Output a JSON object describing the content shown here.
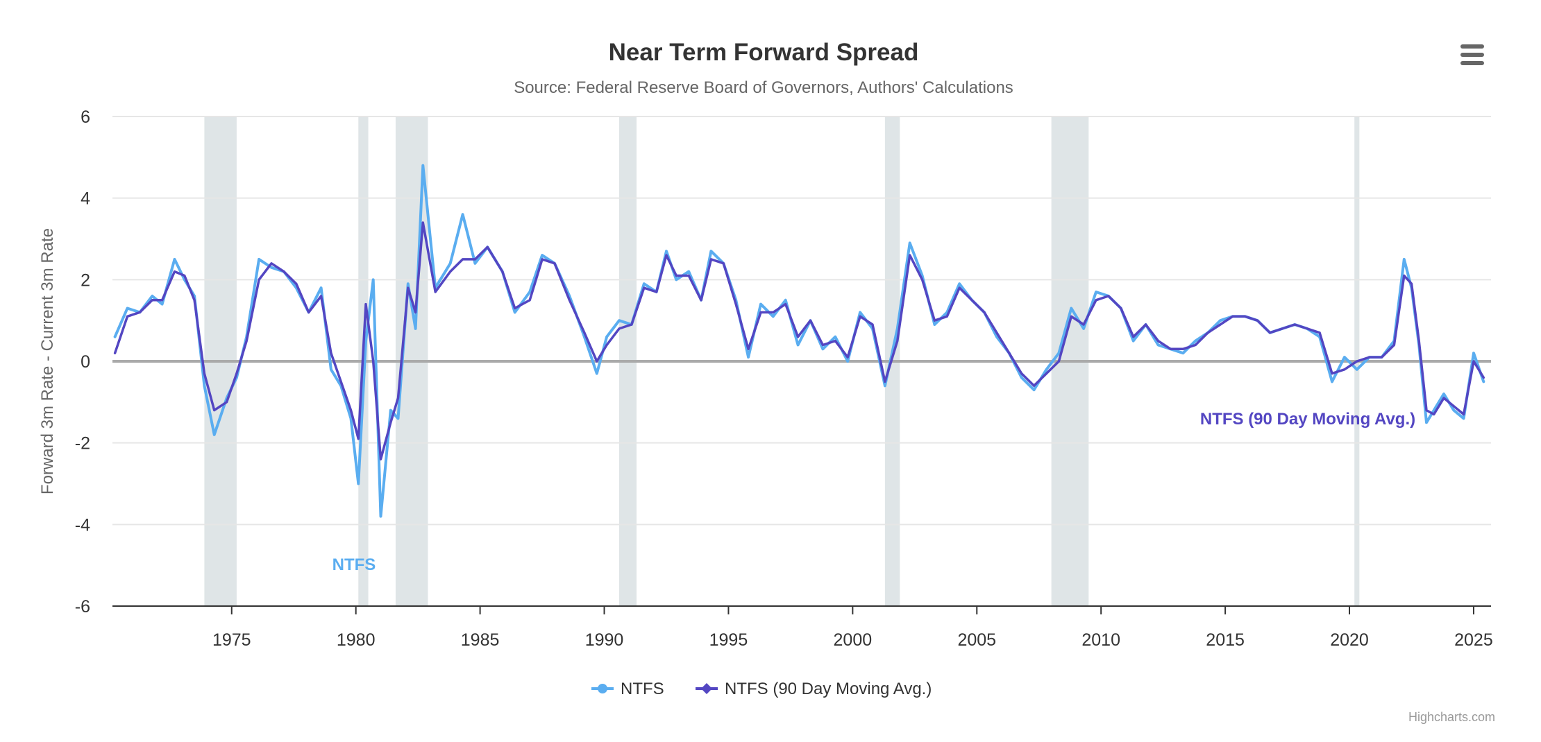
{
  "chart_data": {
    "type": "line",
    "title": "Near Term Forward Spread",
    "subtitle": "Source: Federal Reserve Board of Governors, Authors' Calculations",
    "xlabel": "",
    "ylabel": "Forward 3m Rate - Current 3m Rate",
    "xlim": [
      1970.2,
      2025.7
    ],
    "ylim": [
      -6,
      6
    ],
    "x_ticks": [
      1975,
      1980,
      1985,
      1990,
      1995,
      2000,
      2005,
      2010,
      2015,
      2020,
      2025
    ],
    "x_tick_labels": [
      "1975",
      "1980",
      "1985",
      "1990",
      "1995",
      "2000",
      "2005",
      "2010",
      "2015",
      "2020",
      "2025"
    ],
    "y_ticks": [
      -6,
      -4,
      -2,
      0,
      2,
      4,
      6
    ],
    "y_tick_labels": [
      "-6",
      "-4",
      "-2",
      "0",
      "2",
      "4",
      "6"
    ],
    "grid": true,
    "zero_line": true,
    "recessions": [
      [
        1973.9,
        1975.2
      ],
      [
        1980.1,
        1980.5
      ],
      [
        1981.6,
        1982.9
      ],
      [
        1990.6,
        1991.3
      ],
      [
        2001.3,
        2001.9
      ],
      [
        2008.0,
        2009.5
      ],
      [
        2020.2,
        2020.4
      ]
    ],
    "series": [
      {
        "name": "NTFS",
        "color": "#5aadf0",
        "marker": "circle",
        "label": "NTFS",
        "x": [
          1970.3,
          1970.8,
          1971.3,
          1971.8,
          1972.2,
          1972.7,
          1973.1,
          1973.5,
          1973.9,
          1974.3,
          1974.8,
          1975.2,
          1975.6,
          1976.1,
          1976.6,
          1977.1,
          1977.6,
          1978.1,
          1978.6,
          1979.0,
          1979.4,
          1979.8,
          1980.1,
          1980.4,
          1980.7,
          1981.0,
          1981.4,
          1981.7,
          1982.1,
          1982.4,
          1982.7,
          1983.2,
          1983.8,
          1984.3,
          1984.8,
          1985.3,
          1985.9,
          1986.4,
          1987.0,
          1987.5,
          1988.0,
          1988.6,
          1989.2,
          1989.7,
          1990.1,
          1990.6,
          1991.1,
          1991.6,
          1992.1,
          1992.5,
          1992.9,
          1993.4,
          1993.9,
          1994.3,
          1994.8,
          1995.3,
          1995.8,
          1996.3,
          1996.8,
          1997.3,
          1997.8,
          1998.3,
          1998.8,
          1999.3,
          1999.8,
          2000.3,
          2000.8,
          2001.3,
          2001.8,
          2002.3,
          2002.8,
          2003.3,
          2003.8,
          2004.3,
          2004.8,
          2005.3,
          2005.8,
          2006.3,
          2006.8,
          2007.3,
          2007.8,
          2008.3,
          2008.8,
          2009.3,
          2009.8,
          2010.3,
          2010.8,
          2011.3,
          2011.8,
          2012.3,
          2012.8,
          2013.3,
          2013.8,
          2014.3,
          2014.8,
          2015.3,
          2015.8,
          2016.3,
          2016.8,
          2017.3,
          2017.8,
          2018.3,
          2018.8,
          2019.3,
          2019.8,
          2020.3,
          2020.8,
          2021.3,
          2021.8,
          2022.2,
          2022.5,
          2022.8,
          2023.1,
          2023.4,
          2023.8,
          2024.2,
          2024.6,
          2025.0,
          2025.4
        ],
        "y": [
          0.6,
          1.3,
          1.2,
          1.6,
          1.4,
          2.5,
          2.0,
          1.6,
          -0.6,
          -1.8,
          -0.9,
          -0.4,
          0.6,
          2.5,
          2.3,
          2.2,
          1.8,
          1.2,
          1.8,
          -0.2,
          -0.6,
          -1.4,
          -3.0,
          0.5,
          2.0,
          -3.8,
          -1.2,
          -1.4,
          1.9,
          0.8,
          4.8,
          1.8,
          2.4,
          3.6,
          2.4,
          2.8,
          2.2,
          1.2,
          1.7,
          2.6,
          2.4,
          1.6,
          0.6,
          -0.3,
          0.6,
          1.0,
          0.9,
          1.9,
          1.7,
          2.7,
          2.0,
          2.2,
          1.5,
          2.7,
          2.4,
          1.5,
          0.1,
          1.4,
          1.1,
          1.5,
          0.4,
          1.0,
          0.3,
          0.6,
          0.0,
          1.2,
          0.8,
          -0.6,
          0.8,
          2.9,
          2.1,
          0.9,
          1.2,
          1.9,
          1.5,
          1.2,
          0.6,
          0.2,
          -0.4,
          -0.7,
          -0.2,
          0.2,
          1.3,
          0.8,
          1.7,
          1.6,
          1.3,
          0.5,
          0.9,
          0.4,
          0.3,
          0.2,
          0.5,
          0.7,
          1.0,
          1.1,
          1.1,
          1.0,
          0.7,
          0.8,
          0.9,
          0.8,
          0.6,
          -0.5,
          0.1,
          -0.2,
          0.1,
          0.1,
          0.5,
          2.5,
          1.8,
          0.4,
          -1.5,
          -1.2,
          -0.8,
          -1.2,
          -1.4,
          0.2,
          -0.5
        ]
      },
      {
        "name": "NTFS (90 Day Moving Avg.)",
        "color": "#5346c2",
        "marker": "diamond",
        "label": "NTFS (90 Day Moving Avg.)",
        "x": [
          1970.3,
          1970.8,
          1971.3,
          1971.8,
          1972.2,
          1972.7,
          1973.1,
          1973.5,
          1973.9,
          1974.3,
          1974.8,
          1975.2,
          1975.6,
          1976.1,
          1976.6,
          1977.1,
          1977.6,
          1978.1,
          1978.6,
          1979.0,
          1979.4,
          1979.8,
          1980.1,
          1980.4,
          1980.7,
          1981.0,
          1981.4,
          1981.7,
          1982.1,
          1982.4,
          1982.7,
          1983.2,
          1983.8,
          1984.3,
          1984.8,
          1985.3,
          1985.9,
          1986.4,
          1987.0,
          1987.5,
          1988.0,
          1988.6,
          1989.2,
          1989.7,
          1990.1,
          1990.6,
          1991.1,
          1991.6,
          1992.1,
          1992.5,
          1992.9,
          1993.4,
          1993.9,
          1994.3,
          1994.8,
          1995.3,
          1995.8,
          1996.3,
          1996.8,
          1997.3,
          1997.8,
          1998.3,
          1998.8,
          1999.3,
          1999.8,
          2000.3,
          2000.8,
          2001.3,
          2001.8,
          2002.3,
          2002.8,
          2003.3,
          2003.8,
          2004.3,
          2004.8,
          2005.3,
          2005.8,
          2006.3,
          2006.8,
          2007.3,
          2007.8,
          2008.3,
          2008.8,
          2009.3,
          2009.8,
          2010.3,
          2010.8,
          2011.3,
          2011.8,
          2012.3,
          2012.8,
          2013.3,
          2013.8,
          2014.3,
          2014.8,
          2015.3,
          2015.8,
          2016.3,
          2016.8,
          2017.3,
          2017.8,
          2018.3,
          2018.8,
          2019.3,
          2019.8,
          2020.3,
          2020.8,
          2021.3,
          2021.8,
          2022.2,
          2022.5,
          2022.8,
          2023.1,
          2023.4,
          2023.8,
          2024.2,
          2024.6,
          2025.0,
          2025.4
        ],
        "y": [
          0.2,
          1.1,
          1.2,
          1.5,
          1.5,
          2.2,
          2.1,
          1.5,
          -0.3,
          -1.2,
          -1.0,
          -0.3,
          0.5,
          2.0,
          2.4,
          2.2,
          1.9,
          1.2,
          1.6,
          0.2,
          -0.5,
          -1.2,
          -1.9,
          1.4,
          0.0,
          -2.4,
          -1.5,
          -0.9,
          1.8,
          1.2,
          3.4,
          1.7,
          2.2,
          2.5,
          2.5,
          2.8,
          2.2,
          1.3,
          1.5,
          2.5,
          2.4,
          1.5,
          0.7,
          0.0,
          0.4,
          0.8,
          0.9,
          1.8,
          1.7,
          2.6,
          2.1,
          2.1,
          1.5,
          2.5,
          2.4,
          1.4,
          0.3,
          1.2,
          1.2,
          1.4,
          0.6,
          1.0,
          0.4,
          0.5,
          0.1,
          1.1,
          0.9,
          -0.5,
          0.5,
          2.6,
          2.0,
          1.0,
          1.1,
          1.8,
          1.5,
          1.2,
          0.7,
          0.2,
          -0.3,
          -0.6,
          -0.3,
          0.0,
          1.1,
          0.9,
          1.5,
          1.6,
          1.3,
          0.6,
          0.9,
          0.5,
          0.3,
          0.3,
          0.4,
          0.7,
          0.9,
          1.1,
          1.1,
          1.0,
          0.7,
          0.8,
          0.9,
          0.8,
          0.7,
          -0.3,
          -0.2,
          0.0,
          0.1,
          0.1,
          0.4,
          2.1,
          1.9,
          0.5,
          -1.2,
          -1.3,
          -0.9,
          -1.1,
          -1.3,
          0.0,
          -0.4
        ]
      }
    ]
  },
  "legend": {
    "items": [
      "NTFS",
      "NTFS (90 Day Moving Avg.)"
    ]
  },
  "credits": "Highcharts.com",
  "menu": {
    "icon": "hamburger-menu-icon"
  }
}
